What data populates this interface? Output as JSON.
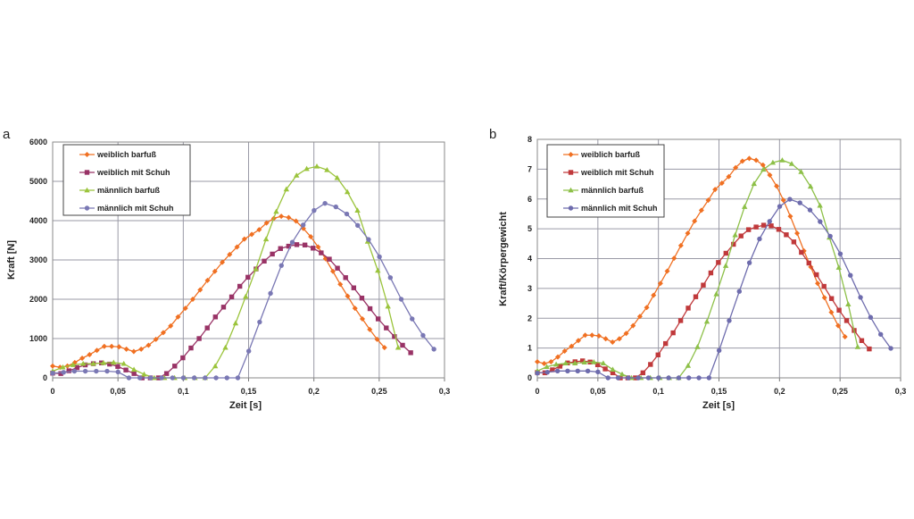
{
  "chart_data": [
    {
      "type": "line",
      "panel_label": "a",
      "xlabel": "Zeit [s]",
      "ylabel": "Kraft [N]",
      "xlim": [
        0,
        0.3
      ],
      "ylim": [
        0,
        6000
      ],
      "xticks": [
        0,
        0.05,
        0.1,
        0.15,
        0.2,
        0.25,
        0.3
      ],
      "xtick_labels": [
        "0",
        "0,05",
        "0,1",
        "0,15",
        "0,2",
        "0,25",
        "0,3"
      ],
      "yticks": [
        0,
        1000,
        2000,
        3000,
        4000,
        5000,
        6000
      ],
      "ytick_labels": [
        "0",
        "1000",
        "2000",
        "3000",
        "4000",
        "5000",
        "6000"
      ],
      "grid": true,
      "legend_position": "top-left",
      "series": [
        {
          "name": "weiblich barfuß",
          "color": "#f07022",
          "marker": "diamond",
          "x_start": 0,
          "x_step": 0.005646,
          "values": [
            300,
            270,
            300,
            390,
            500,
            590,
            700,
            800,
            800,
            790,
            730,
            670,
            730,
            830,
            980,
            1150,
            1320,
            1550,
            1770,
            2000,
            2240,
            2480,
            2710,
            2940,
            3140,
            3330,
            3530,
            3650,
            3770,
            3940,
            4060,
            4110,
            4080,
            3990,
            3800,
            3590,
            3330,
            3030,
            2710,
            2380,
            2080,
            1770,
            1500,
            1230,
            980,
            770
          ]
        },
        {
          "name": "weiblich mit Schuh",
          "color": "#993366",
          "marker": "square",
          "x_start": 0,
          "x_step": 0.00623,
          "values": [
            120,
            110,
            180,
            260,
            330,
            360,
            380,
            350,
            290,
            200,
            110,
            0,
            0,
            0,
            110,
            300,
            510,
            760,
            1000,
            1270,
            1550,
            1800,
            2060,
            2330,
            2560,
            2770,
            2970,
            3150,
            3290,
            3350,
            3390,
            3380,
            3300,
            3180,
            3020,
            2790,
            2550,
            2290,
            2030,
            1760,
            1500,
            1270,
            1050,
            830,
            640
          ]
        },
        {
          "name": "männlich barfuß",
          "color": "#9bc43c",
          "marker": "triangle",
          "x_start": 0,
          "x_step": 0.00778,
          "values": [
            170,
            270,
            330,
            360,
            360,
            380,
            390,
            360,
            210,
            90,
            0,
            0,
            0,
            0,
            0,
            0,
            300,
            770,
            1390,
            2070,
            2770,
            3530,
            4230,
            4800,
            5150,
            5320,
            5380,
            5290,
            5090,
            4730,
            4260,
            3470,
            2730,
            1820,
            770
          ]
        },
        {
          "name": "männlich mit Schuh",
          "color": "#7a78b4",
          "marker": "circle",
          "x_start": 0,
          "x_step": 0.00834,
          "values": [
            120,
            140,
            170,
            170,
            170,
            170,
            150,
            0,
            0,
            0,
            0,
            0,
            0,
            0,
            0,
            0,
            0,
            0,
            680,
            1420,
            2150,
            2860,
            3450,
            3890,
            4260,
            4440,
            4350,
            4170,
            3880,
            3520,
            3080,
            2550,
            2000,
            1500,
            1080,
            730
          ]
        }
      ]
    },
    {
      "type": "line",
      "panel_label": "b",
      "xlabel": "Zeit [s]",
      "ylabel": "Kraft/Körpergewicht",
      "xlim": [
        0,
        0.3
      ],
      "ylim": [
        0,
        8
      ],
      "xticks": [
        0,
        0.05,
        0.1,
        0.15,
        0.2,
        0.25,
        0.3
      ],
      "xtick_labels": [
        "0",
        "0,05",
        "0,1",
        "0,15",
        "0,2",
        "0,25",
        "0,3"
      ],
      "yticks": [
        0,
        1,
        2,
        3,
        4,
        5,
        6,
        7,
        8
      ],
      "ytick_labels": [
        "0",
        "1",
        "2",
        "3",
        "4",
        "5",
        "6",
        "7",
        "8"
      ],
      "grid": true,
      "legend_position": "top-left",
      "series": [
        {
          "name": "weiblich barfuß",
          "color": "#f07022",
          "marker": "diamond",
          "x_start": 0,
          "x_step": 0.005646,
          "values": [
            0.54,
            0.48,
            0.54,
            0.7,
            0.9,
            1.06,
            1.25,
            1.43,
            1.43,
            1.41,
            1.31,
            1.2,
            1.31,
            1.49,
            1.75,
            2.06,
            2.36,
            2.77,
            3.17,
            3.58,
            4.01,
            4.44,
            4.85,
            5.26,
            5.62,
            5.96,
            6.32,
            6.53,
            6.75,
            7.05,
            7.27,
            7.36,
            7.3,
            7.14,
            6.8,
            6.43,
            5.96,
            5.42,
            4.85,
            4.26,
            3.72,
            3.17,
            2.69,
            2.2,
            1.75,
            1.38
          ]
        },
        {
          "name": "weiblich mit Schuh",
          "color": "#c0393b",
          "marker": "square",
          "x_start": 0,
          "x_step": 0.00623,
          "values": [
            0.18,
            0.17,
            0.27,
            0.39,
            0.5,
            0.54,
            0.57,
            0.53,
            0.44,
            0.3,
            0.17,
            0,
            0,
            0,
            0.17,
            0.45,
            0.77,
            1.15,
            1.51,
            1.92,
            2.34,
            2.72,
            3.11,
            3.52,
            3.87,
            4.18,
            4.48,
            4.76,
            4.97,
            5.06,
            5.12,
            5.1,
            4.98,
            4.8,
            4.56,
            4.21,
            3.85,
            3.46,
            3.07,
            2.66,
            2.27,
            1.92,
            1.59,
            1.25,
            0.97
          ]
        },
        {
          "name": "männlich barfuß",
          "color": "#8dc048",
          "marker": "triangle",
          "x_start": 0,
          "x_step": 0.00778,
          "values": [
            0.23,
            0.37,
            0.45,
            0.49,
            0.49,
            0.52,
            0.53,
            0.49,
            0.28,
            0.12,
            0,
            0,
            0,
            0,
            0,
            0,
            0.41,
            1.04,
            1.89,
            2.81,
            3.76,
            4.79,
            5.74,
            6.51,
            6.99,
            7.22,
            7.3,
            7.18,
            6.91,
            6.42,
            5.78,
            4.71,
            3.7,
            2.47,
            1.04
          ]
        },
        {
          "name": "männlich mit Schuh",
          "color": "#6e6cad",
          "marker": "circle",
          "x_start": 0,
          "x_step": 0.00834,
          "values": [
            0.16,
            0.19,
            0.23,
            0.23,
            0.23,
            0.23,
            0.2,
            0,
            0,
            0,
            0,
            0,
            0,
            0,
            0,
            0,
            0,
            0,
            0.92,
            1.92,
            2.9,
            3.86,
            4.66,
            5.25,
            5.75,
            5.99,
            5.87,
            5.63,
            5.24,
            4.75,
            4.16,
            3.44,
            2.7,
            2.03,
            1.46,
            0.99
          ]
        }
      ]
    }
  ]
}
